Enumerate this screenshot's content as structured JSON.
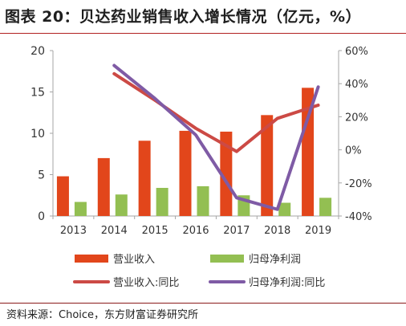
{
  "title": "图表 20：贝达药业销售收入增长情况（亿元，%）",
  "source": "资料来源：Choice，东方财富证券研究所",
  "colors": {
    "revenue_bar": "#e2461b",
    "profit_bar": "#93bf52",
    "revenue_line": "#cc4a45",
    "profit_line": "#7f5ba5",
    "axis": "#a6a6a6",
    "text": "#333333"
  },
  "chart_data": {
    "type": "bar",
    "categories": [
      "2013",
      "2014",
      "2015",
      "2016",
      "2017",
      "2018",
      "2019"
    ],
    "ylim": [
      0,
      20
    ],
    "yticks": [
      "0",
      "5",
      "10",
      "15",
      "20"
    ],
    "y2lim": [
      -40,
      60
    ],
    "y2ticks": [
      "-40%",
      "-20%",
      "0%",
      "20%",
      "40%",
      "60%"
    ],
    "series": [
      {
        "name": "营业收入",
        "kind": "bar",
        "axis": "left",
        "values": [
          4.8,
          7.0,
          9.1,
          10.3,
          10.2,
          12.2,
          15.5
        ]
      },
      {
        "name": "归母净利润",
        "kind": "bar",
        "axis": "left",
        "values": [
          1.7,
          2.6,
          3.4,
          3.6,
          2.5,
          1.6,
          2.2
        ]
      },
      {
        "name": "营业收入:同比",
        "kind": "line",
        "axis": "right",
        "values": [
          null,
          46,
          30,
          13,
          -1,
          19,
          27
        ]
      },
      {
        "name": "归母净利润:同比",
        "kind": "line",
        "axis": "right",
        "values": [
          null,
          51,
          31,
          9,
          -29,
          -36,
          38
        ]
      }
    ],
    "legend": "bottom"
  }
}
